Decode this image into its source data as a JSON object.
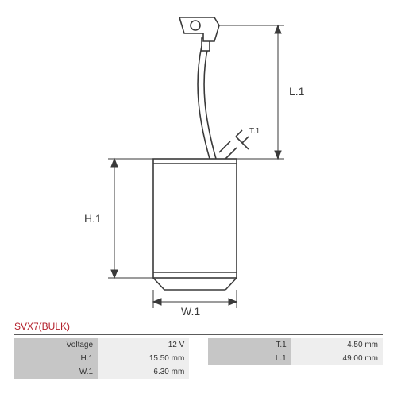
{
  "diagram": {
    "stroke": "#3a3a3a",
    "stroke_thin": "#707070",
    "background": "#ffffff",
    "label_fontsize": 14,
    "label_color": "#3a3a3a",
    "dim_labels": {
      "height": "H.1",
      "width": "W.1",
      "length": "L.1",
      "thickness": "T.1"
    }
  },
  "product": {
    "title": "SVX7(BULK)",
    "title_color": "#b3202b"
  },
  "spec_table": {
    "label_bg": "#c6c6c6",
    "value_bg": "#eeeeee",
    "text_color": "#333333",
    "rows": [
      [
        {
          "label": "Voltage",
          "value": "12 V"
        },
        {
          "label": "T.1",
          "value": "4.50 mm"
        }
      ],
      [
        {
          "label": "H.1",
          "value": "15.50 mm"
        },
        {
          "label": "L.1",
          "value": "49.00 mm"
        }
      ],
      [
        {
          "label": "W.1",
          "value": "6.30 mm"
        },
        null
      ]
    ]
  }
}
